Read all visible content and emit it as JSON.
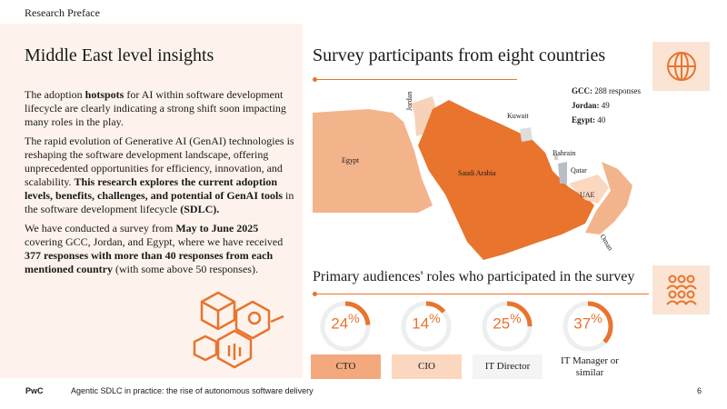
{
  "header": {
    "section": "Research Preface"
  },
  "left": {
    "title": "Middle East level insights",
    "p1": [
      {
        "t": "The adoption ",
        "b": false
      },
      {
        "t": "hotspots",
        "b": true
      },
      {
        "t": " for AI within software development lifecycle are clearly indicating a strong shift soon impacting many roles in the play.",
        "b": false
      }
    ],
    "p2": [
      {
        "t": "The rapid evolution of Generative AI (GenAI) technologies is reshaping the software development landscape, offering unprecedented opportunities for efficiency, innovation, and scalability. ",
        "b": false
      },
      {
        "t": "This research explores the current adoption levels, benefits, challenges, and potential of GenAI tools",
        "b": true
      },
      {
        "t": " in the software development lifecycle ",
        "b": false
      },
      {
        "t": "(SDLC).",
        "b": true
      }
    ],
    "p3": [
      {
        "t": "We have conducted a survey from ",
        "b": false
      },
      {
        "t": "May to June 2025",
        "b": true
      },
      {
        "t": " covering GCC, Jordan, and Egypt, where we have received ",
        "b": false
      },
      {
        "t": "377 responses with more than 40 responses from each mentioned country",
        "b": true
      },
      {
        "t": " (with some above 50 responses).",
        "b": false
      }
    ],
    "icon": "cube-network-icon"
  },
  "participants": {
    "title": "Survey participants from eight countries",
    "icon": "globe-icon",
    "stats": [
      {
        "label": "GCC:",
        "value": "288 responses"
      },
      {
        "label": "Jordan:",
        "value": "49"
      },
      {
        "label": "Egypt:",
        "value": "40"
      }
    ],
    "countries": {
      "egypt": "Egypt",
      "jordan": "Jordan",
      "saudi": "Saudi Arabia",
      "kuwait": "Kuwait",
      "bahrain": "Bahrain",
      "qatar": "Qatar",
      "uae": "UAE",
      "oman": "Oman"
    }
  },
  "audiences": {
    "title": "Primary audiences' roles who participated in the survey",
    "icon": "people-group-icon",
    "roles": [
      {
        "label": "CTO",
        "value": "24",
        "pct": 24,
        "fill": "#f3a97d"
      },
      {
        "label": "CIO",
        "value": "14",
        "pct": 14,
        "fill": "#fbd7bf"
      },
      {
        "label": "IT Director",
        "value": "25",
        "pct": 25,
        "fill": "#f4f4f4"
      },
      {
        "label": "IT Manager or similar",
        "value": "37",
        "pct": 37,
        "fill": "#ffffff"
      }
    ],
    "accent": "#e8742e",
    "track": "#eeeeee"
  },
  "footer": {
    "logo": "PwC",
    "text": "Agentic SDLC in practice: the rise of autonomous software delivery",
    "page": "6"
  }
}
